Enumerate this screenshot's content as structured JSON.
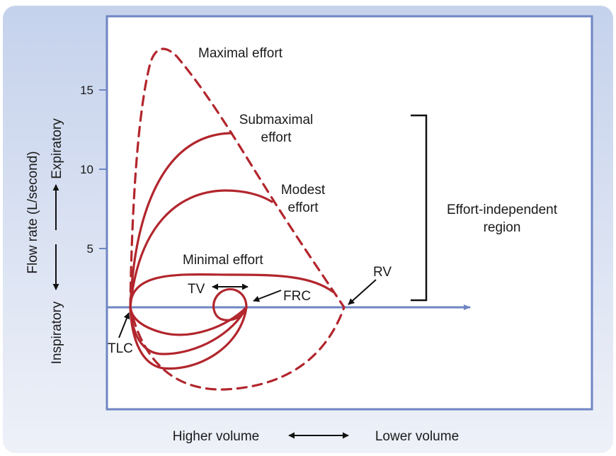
{
  "colors": {
    "background_gradient_top": "#c5d2ec",
    "background_gradient_bottom": "#eef1f8",
    "plot_frame": "#6f86c4",
    "axis": "#6f86c4",
    "curve": "#b2262d",
    "text": "#1a1a1a"
  },
  "y_axis": {
    "title": "Flow rate (L/second)",
    "direction_up": "Expiratory",
    "direction_down": "Inspiratory",
    "ticks": [
      "15",
      "10",
      "5"
    ]
  },
  "x_axis": {
    "left_label": "Higher volume",
    "right_label": "Lower volume"
  },
  "labels": {
    "maximal": "Maximal effort",
    "submaximal_line1": "Submaximal",
    "submaximal_line2": "effort",
    "modest_line1": "Modest",
    "modest_line2": "effort",
    "minimal": "Minimal effort",
    "tv": "TV",
    "frc": "FRC",
    "rv": "RV",
    "tlc": "TLC",
    "region_line1": "Effort-independent",
    "region_line2": "region"
  },
  "icons": {
    "tv_arrow": "double-arrow-icon",
    "volume_arrow": "double-arrow-icon",
    "pointer_arrows": "arrow-icon"
  }
}
